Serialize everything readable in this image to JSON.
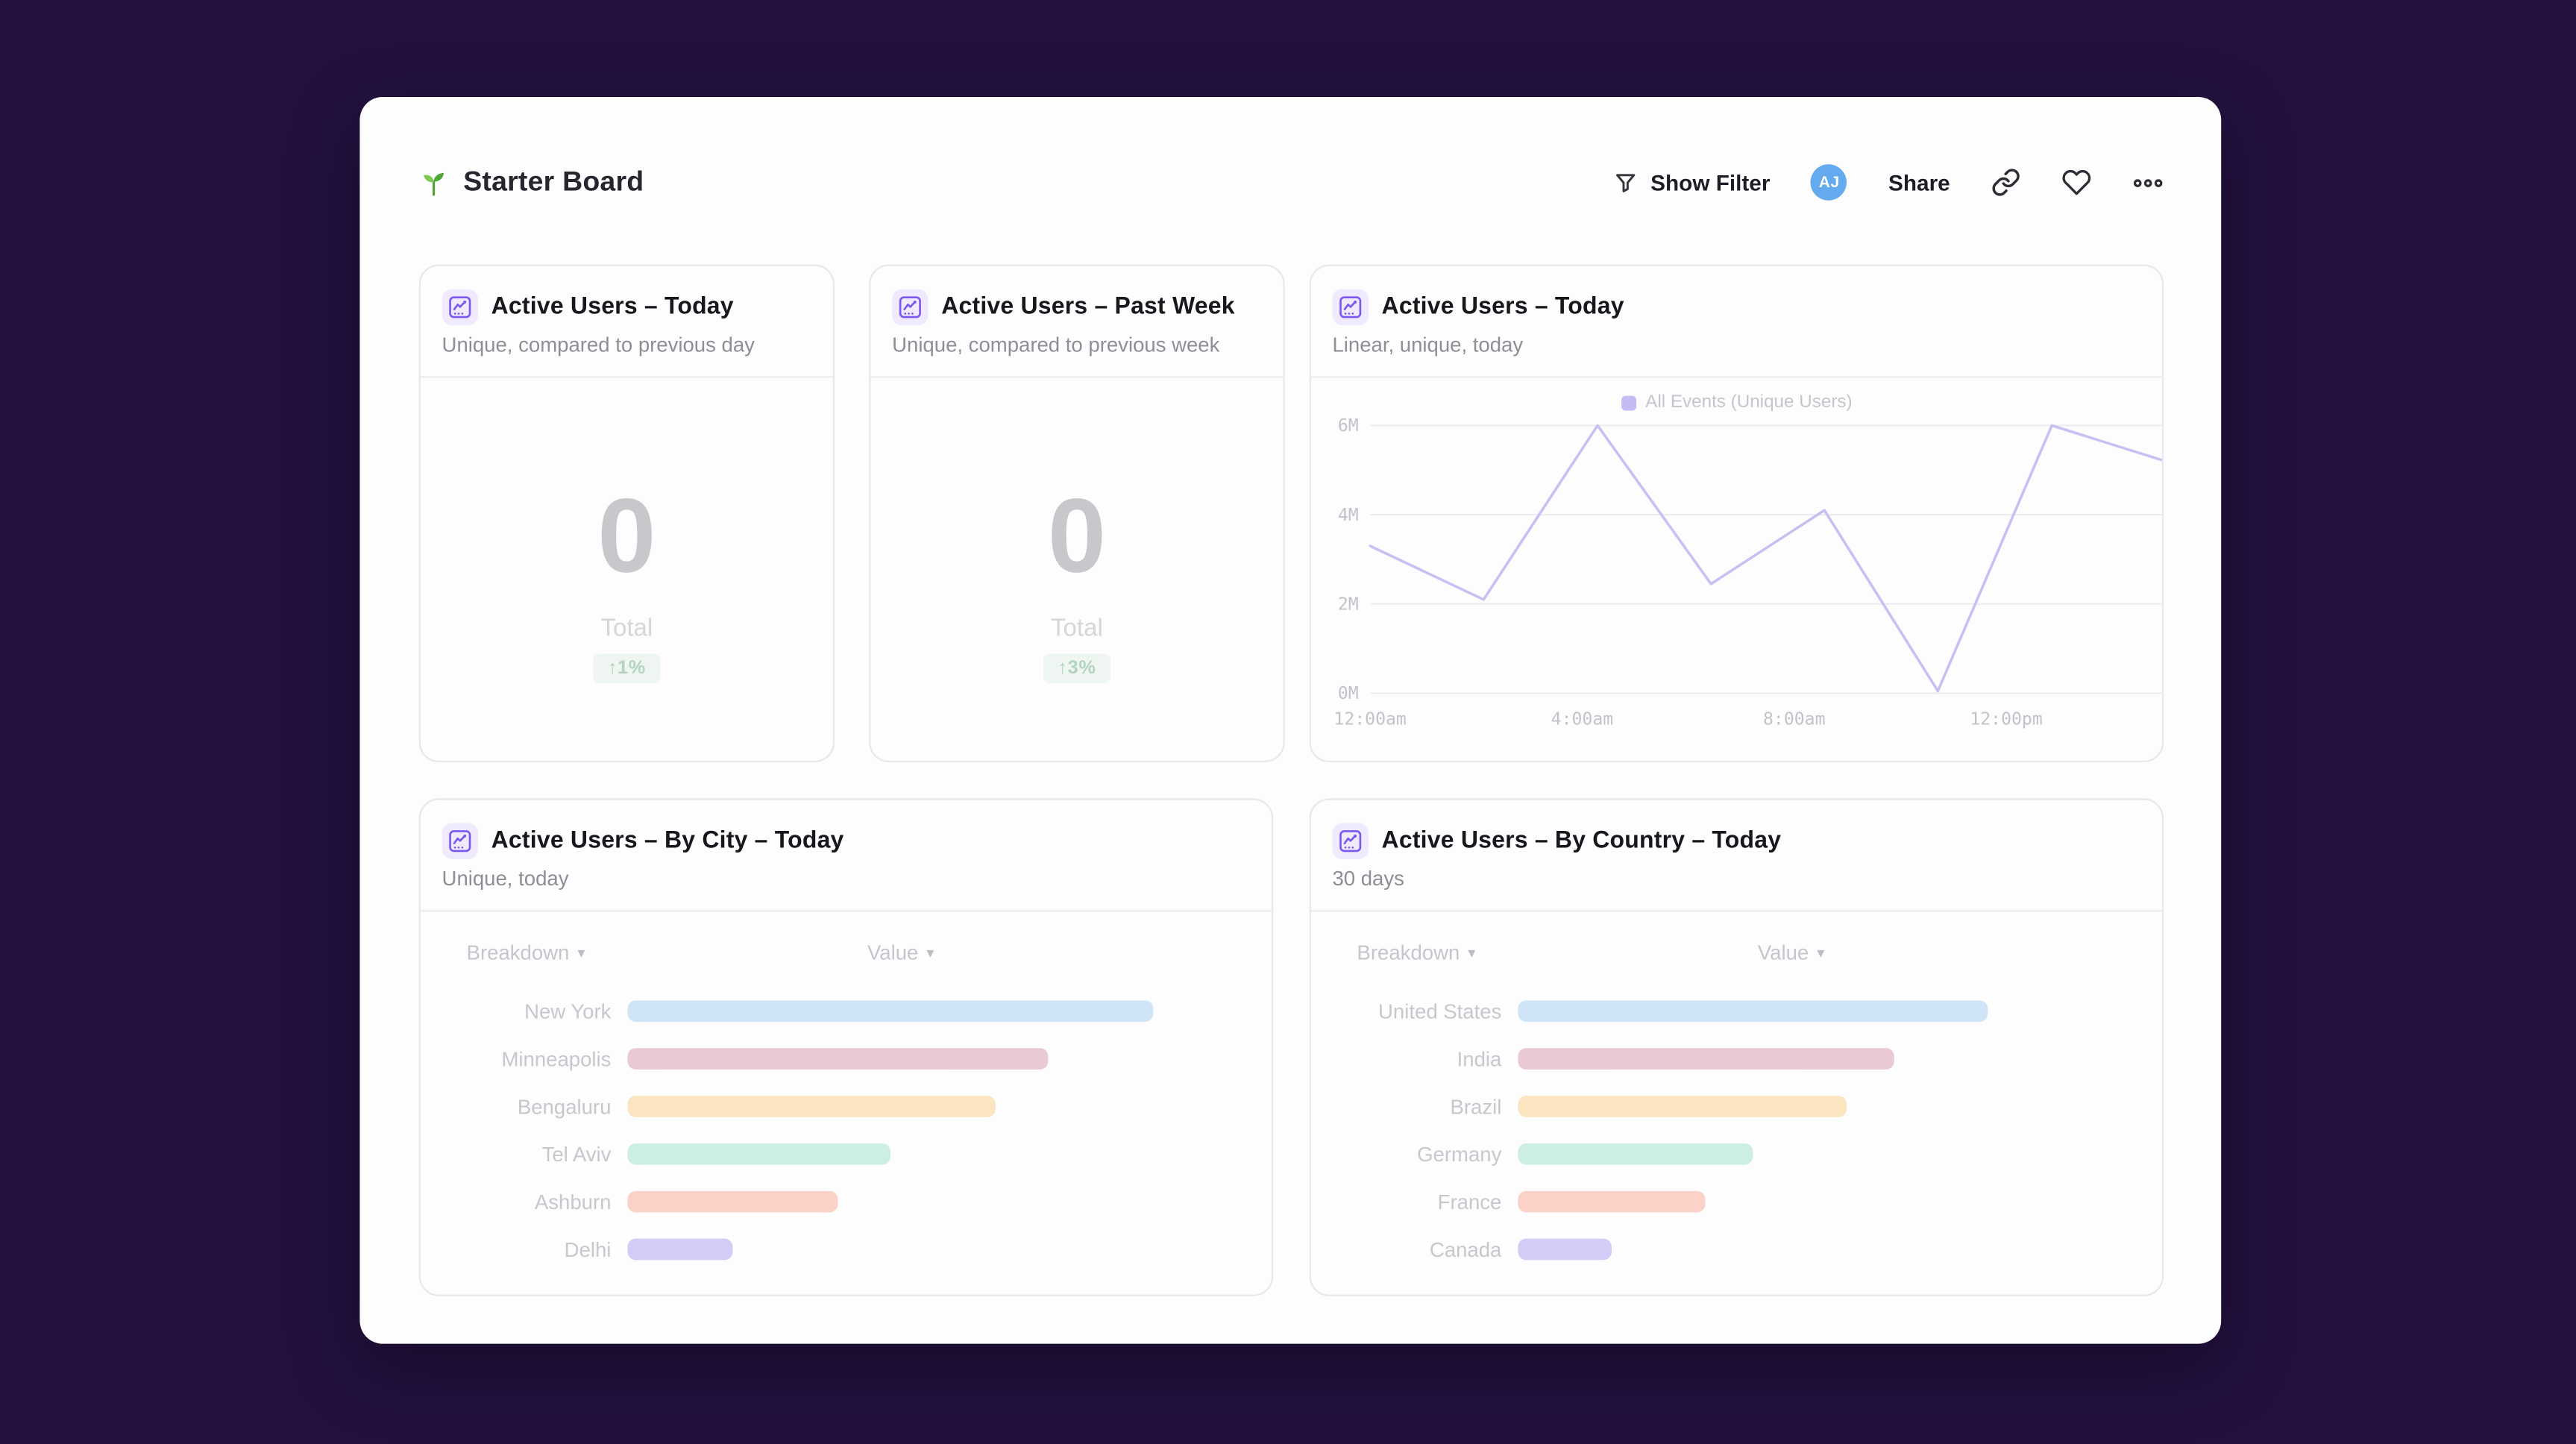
{
  "page": {
    "background": "#241140",
    "card_background": "#fdfdfe",
    "accent_purple": "#7c57f2",
    "panel_border": "#e7e7ec"
  },
  "header": {
    "title": "Starter Board",
    "logo_icon": "seedling-icon",
    "show_filter_label": "Show Filter",
    "avatar_initials": "AJ",
    "share_label": "Share",
    "action_icons": [
      "filter-icon",
      "link-icon",
      "heart-icon",
      "more-options-icon"
    ],
    "avatar_color": "#63aaef"
  },
  "panels": {
    "today": {
      "icon": "insight-chart-icon",
      "title": "Active Users – Today",
      "subtitle": "Unique, compared to previous day",
      "value": "0",
      "value_label": "Total",
      "delta": "↑1%",
      "delta_text_color": "#b2d4c3",
      "delta_bg_color": "#eff5f1"
    },
    "past_week": {
      "icon": "insight-chart-icon",
      "title": "Active Users – Past Week",
      "subtitle": "Unique, compared to previous week",
      "value": "0",
      "value_label": "Total",
      "delta": "↑3%",
      "delta_text_color": "#b2d4c3",
      "delta_bg_color": "#eff5f1"
    },
    "today_chart": {
      "icon": "insight-chart-icon",
      "title": "Active Users – Today",
      "subtitle": "Linear, unique, today",
      "legend_label": "All Events (Unique Users)",
      "legend_swatch_color": "#c5baf2",
      "line_color": "#c8bff2"
    },
    "by_city": {
      "icon": "insight-chart-icon",
      "title": "Active Users – By City – Today",
      "subtitle": "Unique, today",
      "breakdown_label": "Breakdown",
      "value_label": "Value"
    },
    "by_country": {
      "icon": "insight-chart-icon",
      "title": "Active Users – By Country – Today",
      "subtitle": "30 days",
      "breakdown_label": "Breakdown",
      "value_label": "Value"
    }
  },
  "chart_data": [
    {
      "type": "line",
      "title": "Active Users – Today",
      "subtitle": "Linear, unique, today",
      "legend": [
        "All Events (Unique Users)"
      ],
      "legend_position": "top-center",
      "grid": true,
      "line_color": "#c8bff2",
      "xlim_hours": [
        0,
        15
      ],
      "ylim": [
        0,
        6
      ],
      "x_hours": [
        0,
        2.14,
        4.29,
        6.43,
        8.57,
        10.71,
        12.86,
        15
      ],
      "series": [
        {
          "name": "All Events (Unique Users)",
          "values_millions": [
            3.3,
            2.1,
            6.0,
            2.45,
            4.1,
            0.05,
            6.0,
            5.2
          ]
        }
      ],
      "x_ticks": [
        {
          "hour": 0,
          "label": "12:00am"
        },
        {
          "hour": 4,
          "label": "4:00am"
        },
        {
          "hour": 8,
          "label": "8:00am"
        },
        {
          "hour": 12,
          "label": "12:00pm"
        }
      ],
      "y_ticks": [
        {
          "value": 0,
          "label": "0M"
        },
        {
          "value": 2,
          "label": "2M"
        },
        {
          "value": 4,
          "label": "4M"
        },
        {
          "value": 6,
          "label": "6M"
        }
      ]
    },
    {
      "type": "bar",
      "title": "Active Users – By City – Today",
      "categories": [
        "New York",
        "Minneapolis",
        "Bengaluru",
        "Tel Aviv",
        "Ashburn",
        "Delhi"
      ],
      "values_pct_of_max": [
        100,
        80,
        70,
        50,
        40,
        20
      ],
      "bar_colors": [
        "#cfe5f7",
        "#e9cad4",
        "#fbe5c1",
        "#cdeee2",
        "#fcd1c8",
        "#d5cbf7"
      ]
    },
    {
      "type": "bar",
      "title": "Active Users – By Country – Today",
      "categories": [
        "United States",
        "India",
        "Brazil",
        "Germany",
        "France",
        "Canada"
      ],
      "values_pct_of_max": [
        100,
        80,
        70,
        50,
        40,
        20
      ],
      "bar_colors": [
        "#cfe5f7",
        "#e9cad4",
        "#fbe5c1",
        "#cdeee2",
        "#fcd1c8",
        "#d5cbf7"
      ]
    }
  ]
}
